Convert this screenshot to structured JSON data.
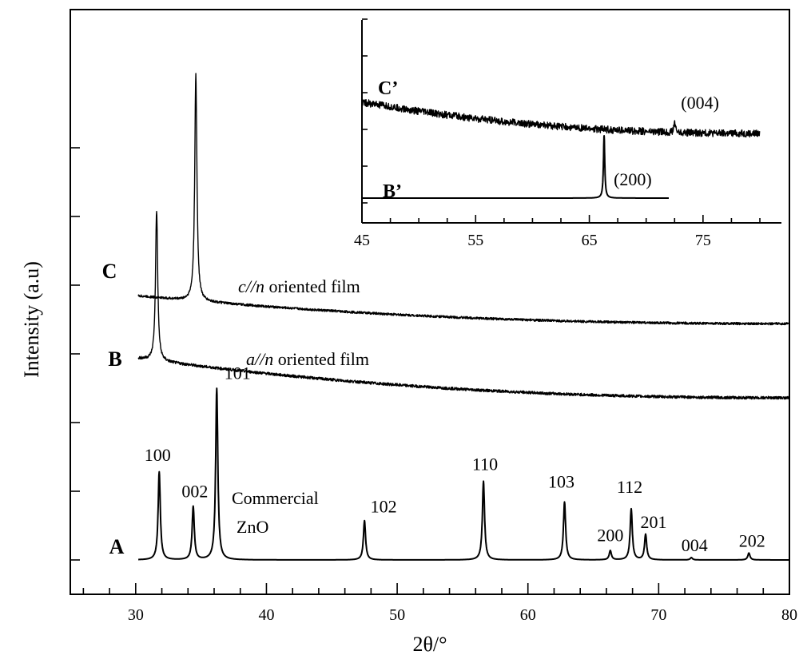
{
  "chart_data": {
    "type": "line",
    "xlabel": "2θ/°",
    "ylabel": "Intensity (a.u)",
    "xlim": [
      25,
      80
    ],
    "x_ticks": [
      30,
      40,
      50,
      60,
      70,
      80
    ],
    "x_minor_step": 2,
    "y_tick_count": 7,
    "series": [
      {
        "name": "A",
        "label_lines": [
          "Commercial",
          "ZnO"
        ],
        "x_range": [
          30.2,
          80
        ],
        "baseline": 0.0,
        "noise": 0.0,
        "peaks": [
          {
            "label": "100",
            "x": 31.8,
            "height": 0.38
          },
          {
            "label": "002",
            "x": 34.4,
            "height": 0.23
          },
          {
            "label": "101",
            "x": 36.2,
            "height": 0.74
          },
          {
            "label": "102",
            "x": 47.5,
            "height": 0.17
          },
          {
            "label": "110",
            "x": 56.6,
            "height": 0.34
          },
          {
            "label": "103",
            "x": 62.8,
            "height": 0.25
          },
          {
            "label": "200",
            "x": 66.3,
            "height": 0.04
          },
          {
            "label": "112",
            "x": 67.9,
            "height": 0.22
          },
          {
            "label": "201",
            "x": 69.0,
            "height": 0.11
          },
          {
            "label": "004",
            "x": 72.5,
            "height": 0.01
          },
          {
            "label": "202",
            "x": 76.9,
            "height": 0.03
          }
        ]
      },
      {
        "name": "B",
        "label_italic": "a//n",
        "label_rest": " oriented film",
        "x_range": [
          30.2,
          80
        ],
        "baseline_start": 0.87,
        "baseline_end": 0.7,
        "noise": 0.006,
        "peaks": [
          {
            "label": "",
            "x": 31.6,
            "height": 0.65
          }
        ]
      },
      {
        "name": "C",
        "label_italic": "c//n",
        "label_rest": " oriented film",
        "x_range": [
          30.2,
          80
        ],
        "baseline_start": 1.14,
        "baseline_end": 1.02,
        "noise": 0.005,
        "peaks": [
          {
            "label": "",
            "x": 34.6,
            "height": 0.98
          }
        ]
      }
    ],
    "inset": {
      "xlim": [
        45,
        80
      ],
      "x_ticks": [
        45,
        55,
        65,
        75
      ],
      "series": [
        {
          "name": "C’",
          "x_range": [
            45,
            80
          ],
          "baseline_start": 0.84,
          "baseline_end": 0.58,
          "noise": 0.03,
          "peaks": [
            {
              "label": "(004)",
              "x": 72.5,
              "height": 0.09
            }
          ]
        },
        {
          "name": "B’",
          "x_range": [
            45,
            72
          ],
          "baseline_start": 0.04,
          "baseline_end": 0.04,
          "noise": 0.0,
          "peaks": [
            {
              "label": "(200)",
              "x": 66.3,
              "height": 0.52
            }
          ]
        }
      ]
    }
  }
}
